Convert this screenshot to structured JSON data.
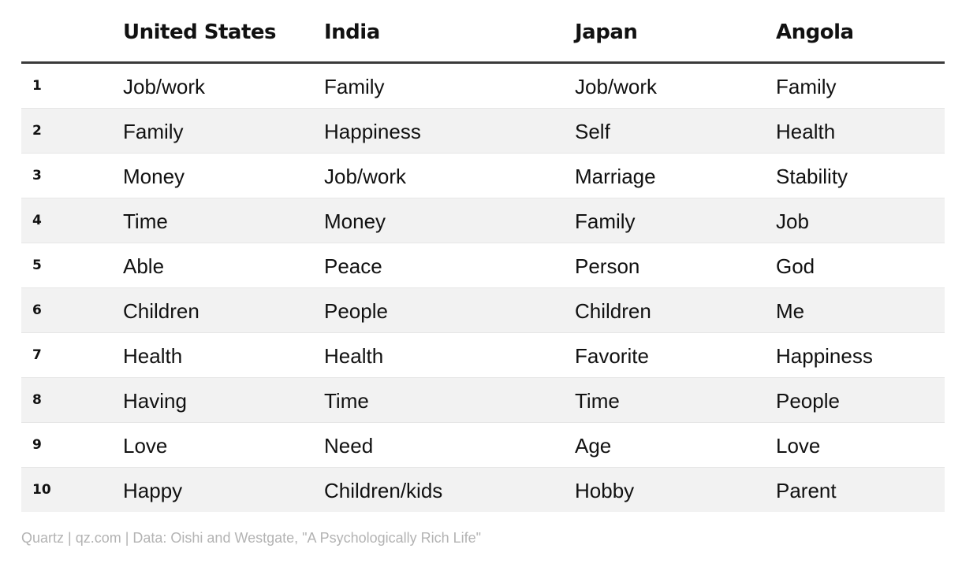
{
  "chart_data": {
    "type": "table",
    "columns": [
      "",
      "United States",
      "India",
      "Japan",
      "Angola"
    ],
    "rows": [
      {
        "rank": "1",
        "cells": [
          "Job/work",
          "Family",
          "Job/work",
          "Family"
        ]
      },
      {
        "rank": "2",
        "cells": [
          "Family",
          "Happiness",
          "Self",
          "Health"
        ]
      },
      {
        "rank": "3",
        "cells": [
          "Money",
          "Job/work",
          "Marriage",
          "Stability"
        ]
      },
      {
        "rank": "4",
        "cells": [
          "Time",
          "Money",
          "Family",
          "Job"
        ]
      },
      {
        "rank": "5",
        "cells": [
          "Able",
          "Peace",
          "Person",
          "God"
        ]
      },
      {
        "rank": "6",
        "cells": [
          "Children",
          "People",
          "Children",
          "Me"
        ]
      },
      {
        "rank": "7",
        "cells": [
          "Health",
          "Health",
          "Favorite",
          "Happiness"
        ]
      },
      {
        "rank": "8",
        "cells": [
          "Having",
          "Time",
          "Time",
          "People"
        ]
      },
      {
        "rank": "9",
        "cells": [
          "Love",
          "Need",
          "Age",
          "Love"
        ]
      },
      {
        "rank": "10",
        "cells": [
          "Happy",
          "Children/kids",
          "Hobby",
          "Parent"
        ]
      }
    ],
    "source": "Quartz | qz.com | Data: Oishi and Westgate, \"A Psychologically Rich Life\"",
    "colors": {
      "text": "#111111",
      "stripe": "#f2f2f2",
      "header_rule": "#3a3a3a",
      "source_text": "#b3b3b3"
    }
  }
}
